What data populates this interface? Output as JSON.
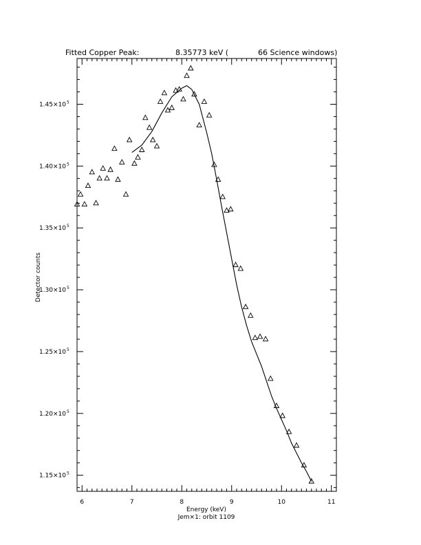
{
  "chart_data": {
    "type": "scatter",
    "title_parts": [
      "Fitted Copper Peak:",
      "8.35773 keV (",
      "66 Science windows)"
    ],
    "xlabel": "Energy (keV)",
    "subtitle": "Jem×1: orbit 1109",
    "ylabel": "Detector counts",
    "xlim": [
      5.9,
      11.1
    ],
    "ylim": [
      1.137,
      1.487
    ],
    "x_ticks": [
      6,
      7,
      8,
      9,
      10,
      11
    ],
    "y_ticks": [
      1.15,
      1.2,
      1.25,
      1.3,
      1.35,
      1.4,
      1.45
    ],
    "y_tick_mantissas": [
      "1.15×10",
      "1.20×10",
      "1.25×10",
      "1.30×10",
      "1.35×10",
      "1.40×10",
      "1.45×10"
    ],
    "y_tick_exponent": "5",
    "grid": false,
    "series": [
      {
        "marker": "triangle",
        "points": [
          [
            5.9,
            1.369
          ],
          [
            5.97,
            1.377
          ],
          [
            6.05,
            1.369
          ],
          [
            6.12,
            1.384
          ],
          [
            6.2,
            1.395
          ],
          [
            6.28,
            1.37
          ],
          [
            6.35,
            1.39
          ],
          [
            6.42,
            1.398
          ],
          [
            6.5,
            1.39
          ],
          [
            6.57,
            1.397
          ],
          [
            6.65,
            1.414
          ],
          [
            6.72,
            1.389
          ],
          [
            6.8,
            1.403
          ],
          [
            6.88,
            1.377
          ],
          [
            6.95,
            1.421
          ],
          [
            7.05,
            1.402
          ],
          [
            7.12,
            1.407
          ],
          [
            7.2,
            1.413
          ],
          [
            7.27,
            1.439
          ],
          [
            7.35,
            1.431
          ],
          [
            7.42,
            1.421
          ],
          [
            7.5,
            1.416
          ],
          [
            7.57,
            1.452
          ],
          [
            7.65,
            1.459
          ],
          [
            7.72,
            1.445
          ],
          [
            7.8,
            1.447
          ],
          [
            7.88,
            1.461
          ],
          [
            7.95,
            1.462
          ],
          [
            8.03,
            1.454
          ],
          [
            8.1,
            1.473
          ],
          [
            8.18,
            1.479
          ],
          [
            8.25,
            1.458
          ],
          [
            8.35,
            1.433
          ],
          [
            8.45,
            1.452
          ],
          [
            8.55,
            1.441
          ],
          [
            8.65,
            1.401
          ],
          [
            8.73,
            1.389
          ],
          [
            8.82,
            1.375
          ],
          [
            8.9,
            1.364
          ],
          [
            8.98,
            1.365
          ],
          [
            9.08,
            1.32
          ],
          [
            9.18,
            1.317
          ],
          [
            9.28,
            1.286
          ],
          [
            9.38,
            1.279
          ],
          [
            9.47,
            1.261
          ],
          [
            9.57,
            1.262
          ],
          [
            9.68,
            1.26
          ],
          [
            9.78,
            1.228
          ],
          [
            9.9,
            1.206
          ],
          [
            10.02,
            1.198
          ],
          [
            10.15,
            1.185
          ],
          [
            10.3,
            1.174
          ],
          [
            10.45,
            1.158
          ],
          [
            10.6,
            1.145
          ]
        ]
      },
      {
        "marker": "line",
        "points": [
          [
            7.0,
            1.411
          ],
          [
            7.2,
            1.417
          ],
          [
            7.4,
            1.428
          ],
          [
            7.6,
            1.443
          ],
          [
            7.8,
            1.456
          ],
          [
            8.0,
            1.463
          ],
          [
            8.1,
            1.465
          ],
          [
            8.2,
            1.462
          ],
          [
            8.35,
            1.45
          ],
          [
            8.5,
            1.427
          ],
          [
            8.6,
            1.41
          ],
          [
            8.7,
            1.389
          ],
          [
            8.8,
            1.367
          ],
          [
            8.9,
            1.346
          ],
          [
            9.0,
            1.325
          ],
          [
            9.1,
            1.304
          ],
          [
            9.2,
            1.286
          ],
          [
            9.3,
            1.271
          ],
          [
            9.4,
            1.258
          ],
          [
            9.5,
            1.248
          ],
          [
            9.6,
            1.238
          ],
          [
            9.7,
            1.226
          ],
          [
            9.8,
            1.214
          ],
          [
            9.9,
            1.204
          ],
          [
            10.0,
            1.195
          ],
          [
            10.1,
            1.186
          ],
          [
            10.2,
            1.176
          ],
          [
            10.3,
            1.168
          ],
          [
            10.4,
            1.16
          ],
          [
            10.5,
            1.153
          ],
          [
            10.6,
            1.145
          ]
        ]
      }
    ]
  }
}
